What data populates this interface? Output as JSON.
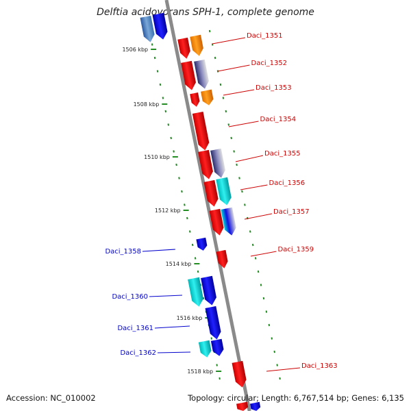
{
  "title": "Delftia acidovorans SPH-1, complete genome",
  "footer": {
    "accession": "Accession: NC_010002",
    "summary": "Topology: circular; Length: 6,767,514 bp; Genes: 6,135"
  },
  "colors": {
    "backbone": "#8a8a8a",
    "tick": "#228b22",
    "right_label": "#cc0000",
    "left_label": "#0000cc"
  },
  "kbp_labels": [
    "1506 kbp",
    "1508 kbp",
    "1510 kbp",
    "1512 kbp",
    "1514 kbp",
    "1516 kbp",
    "1518 kbp"
  ],
  "right_genes": [
    "Daci_1351",
    "Daci_1352",
    "Daci_1353",
    "Daci_1354",
    "Daci_1355",
    "Daci_1356",
    "Daci_1357",
    "Daci_1359",
    "Daci_1363"
  ],
  "left_genes": [
    "Daci_1358",
    "Daci_1360",
    "Daci_1361",
    "Daci_1362"
  ]
}
